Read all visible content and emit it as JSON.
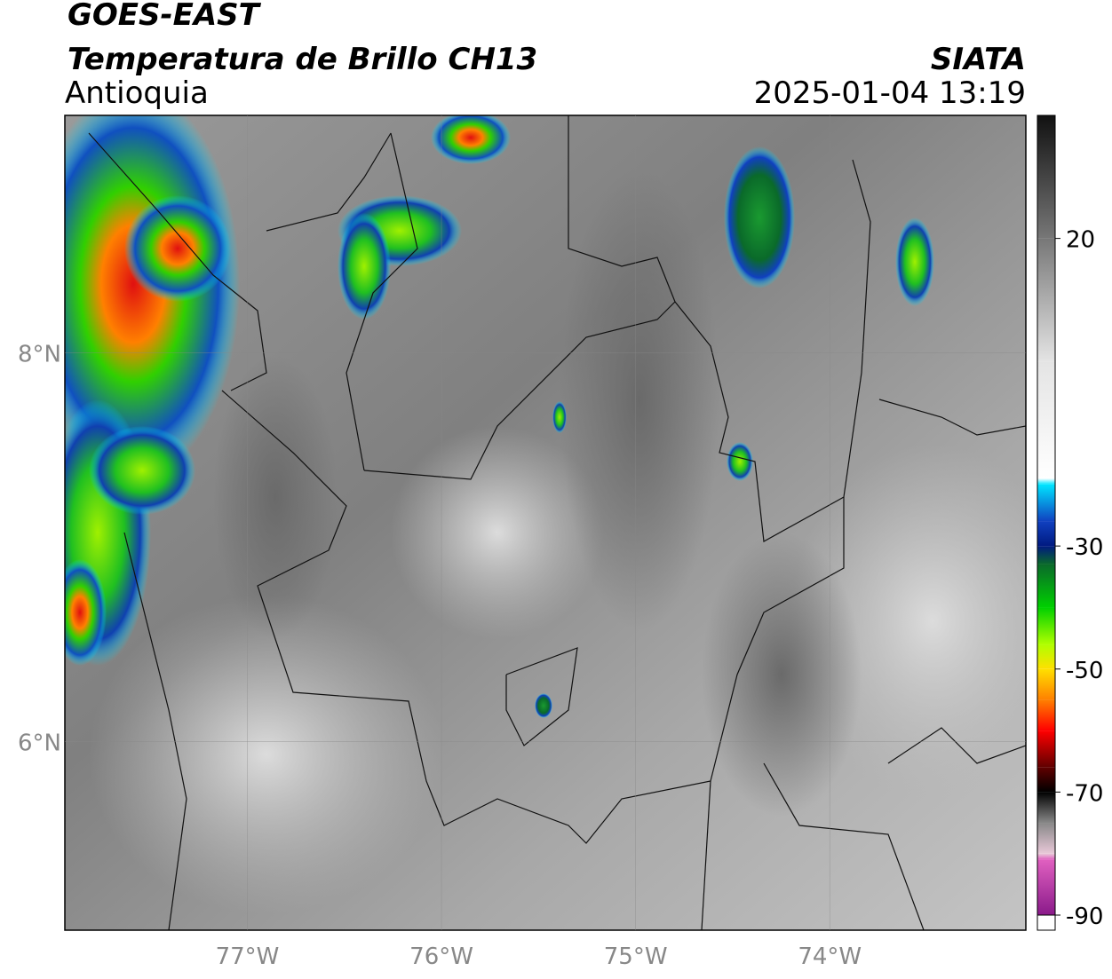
{
  "chart_data": {
    "type": "raster-map",
    "title": "GOES-EAST",
    "subtitle": "Temperatura de Brillo CH13",
    "region": "Antioquia",
    "source": "SIATA",
    "datetime": "2025-01-04 13:19",
    "xlim": [
      -77.94,
      -72.99
    ],
    "ylim": [
      5.03,
      9.22
    ],
    "xticks": [
      {
        "value": -77,
        "label": "77°W"
      },
      {
        "value": -76,
        "label": "76°W"
      },
      {
        "value": -75,
        "label": "75°W"
      },
      {
        "value": -74,
        "label": "74°W"
      }
    ],
    "yticks": [
      {
        "value": 6,
        "label": "6°N"
      },
      {
        "value": 8,
        "label": "8°N"
      }
    ],
    "grid": true,
    "colorbar": {
      "lim": [
        -90,
        40
      ],
      "ticks": [
        20,
        -30,
        -50,
        -70,
        -90
      ],
      "stops": [
        {
          "value": 40,
          "color": "#111111"
        },
        {
          "value": 20,
          "color": "#777777"
        },
        {
          "value": 0,
          "color": "#e4e4e4"
        },
        {
          "value": -19,
          "color": "#ffffff"
        },
        {
          "value": -20,
          "color": "#00e5ff"
        },
        {
          "value": -26,
          "color": "#1040c0"
        },
        {
          "value": -30,
          "color": "#001a80"
        },
        {
          "value": -33,
          "color": "#0a6a2a"
        },
        {
          "value": -40,
          "color": "#00d000"
        },
        {
          "value": -46,
          "color": "#b0ff00"
        },
        {
          "value": -50,
          "color": "#ffe000"
        },
        {
          "value": -55,
          "color": "#ff8000"
        },
        {
          "value": -60,
          "color": "#ff0000"
        },
        {
          "value": -66,
          "color": "#600000"
        },
        {
          "value": -70,
          "color": "#000000"
        },
        {
          "value": -75,
          "color": "#888888"
        },
        {
          "value": -80,
          "color": "#e8c8d8"
        },
        {
          "value": -81,
          "color": "#e060c0"
        },
        {
          "value": -90,
          "color": "#8a1a8a"
        }
      ]
    }
  }
}
